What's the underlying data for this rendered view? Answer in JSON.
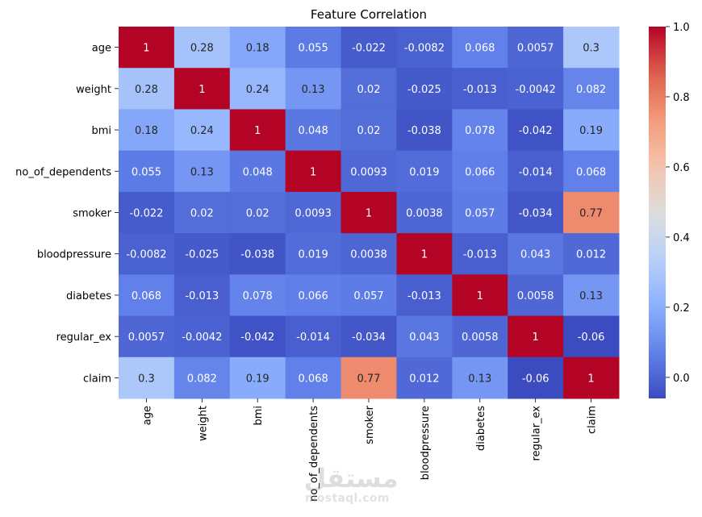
{
  "chart_data": {
    "type": "heatmap",
    "title": "Feature Correlation",
    "rows": [
      "age",
      "weight",
      "bmi",
      "no_of_dependents",
      "smoker",
      "bloodpressure",
      "diabetes",
      "regular_ex",
      "claim"
    ],
    "cols": [
      "age",
      "weight",
      "bmi",
      "no_of_dependents",
      "smoker",
      "bloodpressure",
      "diabetes",
      "regular_ex",
      "claim"
    ],
    "values": [
      [
        1,
        0.28,
        0.18,
        0.055,
        -0.022,
        -0.0082,
        0.068,
        0.0057,
        0.3
      ],
      [
        0.28,
        1,
        0.24,
        0.13,
        0.02,
        -0.025,
        -0.013,
        -0.0042,
        0.082
      ],
      [
        0.18,
        0.24,
        1,
        0.048,
        0.02,
        -0.038,
        0.078,
        -0.042,
        0.19
      ],
      [
        0.055,
        0.13,
        0.048,
        1,
        0.0093,
        0.019,
        0.066,
        -0.014,
        0.068
      ],
      [
        -0.022,
        0.02,
        0.02,
        0.0093,
        1,
        0.0038,
        0.057,
        -0.034,
        0.77
      ],
      [
        -0.0082,
        -0.025,
        -0.038,
        0.019,
        0.0038,
        1,
        -0.013,
        0.043,
        0.012
      ],
      [
        0.068,
        -0.013,
        0.078,
        0.066,
        0.057,
        -0.013,
        1,
        0.0058,
        0.13
      ],
      [
        0.0057,
        -0.0042,
        -0.042,
        -0.014,
        -0.034,
        0.043,
        0.0058,
        1,
        -0.06
      ],
      [
        0.3,
        0.082,
        0.19,
        0.068,
        0.77,
        0.012,
        0.13,
        -0.06,
        1
      ]
    ],
    "labels": [
      [
        "1",
        "0.28",
        "0.18",
        "0.055",
        "-0.022",
        "-0.0082",
        "0.068",
        "0.0057",
        "0.3"
      ],
      [
        "0.28",
        "1",
        "0.24",
        "0.13",
        "0.02",
        "-0.025",
        "-0.013",
        "-0.0042",
        "0.082"
      ],
      [
        "0.18",
        "0.24",
        "1",
        "0.048",
        "0.02",
        "-0.038",
        "0.078",
        "-0.042",
        "0.19"
      ],
      [
        "0.055",
        "0.13",
        "0.048",
        "1",
        "0.0093",
        "0.019",
        "0.066",
        "-0.014",
        "0.068"
      ],
      [
        "-0.022",
        "0.02",
        "0.02",
        "0.0093",
        "1",
        "0.0038",
        "0.057",
        "-0.034",
        "0.77"
      ],
      [
        "-0.0082",
        "-0.025",
        "-0.038",
        "0.019",
        "0.0038",
        "1",
        "-0.013",
        "0.043",
        "0.012"
      ],
      [
        "0.068",
        "-0.013",
        "0.078",
        "0.066",
        "0.057",
        "-0.013",
        "1",
        "0.0058",
        "0.13"
      ],
      [
        "0.0057",
        "-0.0042",
        "-0.042",
        "-0.014",
        "-0.034",
        "0.043",
        "0.0058",
        "1",
        "-0.06"
      ],
      [
        "0.3",
        "0.082",
        "0.19",
        "0.068",
        "0.77",
        "0.012",
        "0.13",
        "-0.06",
        "1"
      ]
    ],
    "colormap": "coolwarm",
    "colorbar": {
      "range": [
        -0.06,
        1.0
      ],
      "ticks": [
        0.0,
        0.2,
        0.4,
        0.6,
        0.8,
        1.0
      ],
      "tick_labels": [
        "0.0",
        "0.2",
        "0.4",
        "0.6",
        "0.8",
        "1.0"
      ]
    }
  },
  "watermark": {
    "logo_text": "مستقل",
    "url_text": "mostaql.com"
  }
}
